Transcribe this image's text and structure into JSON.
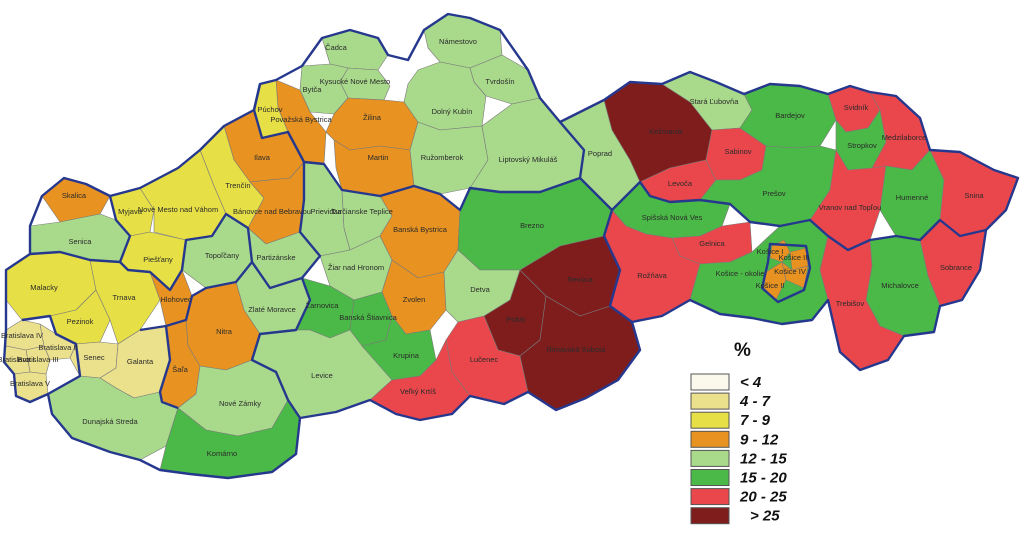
{
  "legend": {
    "title": "%",
    "classes": [
      {
        "label": "< 4",
        "color": "#fbf8ec"
      },
      {
        "label": "4 - 7",
        "color": "#ebe08c"
      },
      {
        "label": "7 - 9",
        "color": "#e6df45"
      },
      {
        "label": "9 - 12",
        "color": "#e79221"
      },
      {
        "label": "12 - 15",
        "color": "#a9da8c"
      },
      {
        "label": "15  - 20",
        "color": "#4bb947"
      },
      {
        "label": "20 - 25",
        "color": "#e9474b"
      },
      {
        "label": "> 25",
        "color": "#7f1d1d"
      }
    ]
  },
  "colors": {
    "region_border": "#26388e",
    "district_border": "#7a7a7a"
  },
  "districts": [
    {
      "name": "Čadca",
      "class": 4
    },
    {
      "name": "Námestovo",
      "class": 4
    },
    {
      "name": "Kysucké Nové Mesto",
      "class": 4
    },
    {
      "name": "Tvrdošín",
      "class": 4
    },
    {
      "name": "Bytča",
      "class": 4
    },
    {
      "name": "Považská Bystrica",
      "class": 3
    },
    {
      "name": "Púchov",
      "class": 2
    },
    {
      "name": "Žilina",
      "class": 3
    },
    {
      "name": "Dolný Kubín",
      "class": 4
    },
    {
      "name": "Martin",
      "class": 3
    },
    {
      "name": "Ružomberok",
      "class": 4
    },
    {
      "name": "Liptovský Mikuláš",
      "class": 4
    },
    {
      "name": "Ilava",
      "class": 3
    },
    {
      "name": "Trenčín",
      "class": 2
    },
    {
      "name": "Skalica",
      "class": 3
    },
    {
      "name": "Myjava",
      "class": 2
    },
    {
      "name": "Nové Mesto nad Váhom",
      "class": 2
    },
    {
      "name": "Bánovce nad Bebravou",
      "class": 3
    },
    {
      "name": "Prievidza",
      "class": 4
    },
    {
      "name": "Turčianske Teplice",
      "class": 4
    },
    {
      "name": "Senica",
      "class": 4
    },
    {
      "name": "Piešťany",
      "class": 2
    },
    {
      "name": "Topoľčany",
      "class": 4
    },
    {
      "name": "Partizánske",
      "class": 4
    },
    {
      "name": "Žiar nad Hronom",
      "class": 4
    },
    {
      "name": "Banská Bystrica",
      "class": 3
    },
    {
      "name": "Brezno",
      "class": 5
    },
    {
      "name": "Malacky",
      "class": 2
    },
    {
      "name": "Trnava",
      "class": 2
    },
    {
      "name": "Hlohovec",
      "class": 3
    },
    {
      "name": "Pezinok",
      "class": 2
    },
    {
      "name": "Zlaté Moravce",
      "class": 4
    },
    {
      "name": "Žarnovica",
      "class": 5
    },
    {
      "name": "Banská Štiavnica",
      "class": 5
    },
    {
      "name": "Zvolen",
      "class": 3
    },
    {
      "name": "Detva",
      "class": 4
    },
    {
      "name": "Poltár",
      "class": 7
    },
    {
      "name": "Revúca",
      "class": 7
    },
    {
      "name": "Bratislava IV",
      "class": 1
    },
    {
      "name": "Bratislava II",
      "class": 1
    },
    {
      "name": "Bratislava III",
      "class": 1
    },
    {
      "name": "Bratislava I",
      "class": 1
    },
    {
      "name": "Bratislava V",
      "class": 1
    },
    {
      "name": "Senec",
      "class": 1
    },
    {
      "name": "Galanta",
      "class": 1
    },
    {
      "name": "Nitra",
      "class": 3
    },
    {
      "name": "Šaľa",
      "class": 3
    },
    {
      "name": "Dunajská Streda",
      "class": 4
    },
    {
      "name": "Nové Zámky",
      "class": 4
    },
    {
      "name": "Levice",
      "class": 4
    },
    {
      "name": "Krupina",
      "class": 5
    },
    {
      "name": "Lučenec",
      "class": 6
    },
    {
      "name": "Rimavská Sobota",
      "class": 7
    },
    {
      "name": "Veľký Krtíš",
      "class": 6
    },
    {
      "name": "Komárno",
      "class": 5
    },
    {
      "name": "Poprad",
      "class": 4
    },
    {
      "name": "Kežmarok",
      "class": 7
    },
    {
      "name": "Stará Ľubovňa",
      "class": 4
    },
    {
      "name": "Levoča",
      "class": 6
    },
    {
      "name": "Sabinov",
      "class": 6
    },
    {
      "name": "Bardejov",
      "class": 5
    },
    {
      "name": "Svidník",
      "class": 6
    },
    {
      "name": "Stropkov",
      "class": 5
    },
    {
      "name": "Medzilaborce",
      "class": 6
    },
    {
      "name": "Prešov",
      "class": 5
    },
    {
      "name": "Vranov nad Topľou",
      "class": 6
    },
    {
      "name": "Humenné",
      "class": 5
    },
    {
      "name": "Snina",
      "class": 6
    },
    {
      "name": "Spišská Nová Ves",
      "class": 5
    },
    {
      "name": "Gelnica",
      "class": 6
    },
    {
      "name": "Rožňava",
      "class": 6
    },
    {
      "name": "Košice - okolie",
      "class": 5
    },
    {
      "name": "Košice I",
      "class": 3
    },
    {
      "name": "Košice II",
      "class": 3
    },
    {
      "name": "Košice III",
      "class": 3
    },
    {
      "name": "Košice IV",
      "class": 3
    },
    {
      "name": "Sobrance",
      "class": 6
    },
    {
      "name": "Michalovce",
      "class": 5
    },
    {
      "name": "Trebišov",
      "class": 6
    }
  ]
}
